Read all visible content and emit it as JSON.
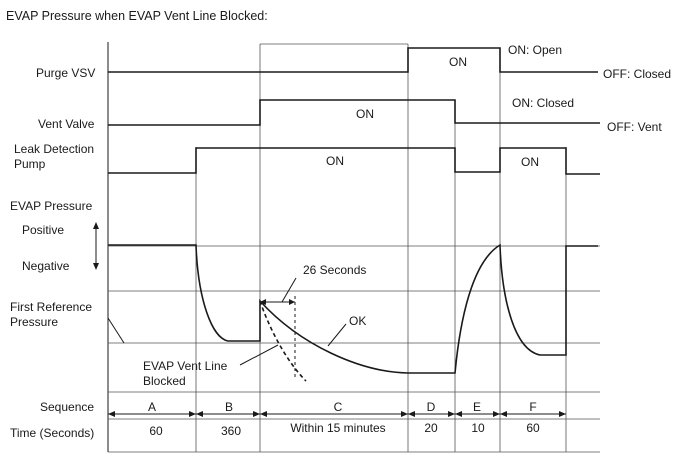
{
  "title": "EVAP Pressure when EVAP Vent Line Blocked:",
  "labels": {
    "purge_vsv": "Purge VSV",
    "vent_valve": "Vent Valve",
    "leak_pump_line1": "Leak Detection",
    "leak_pump_line2": "Pump",
    "evap_pressure": "EVAP Pressure",
    "positive": "Positive",
    "negative": "Negative",
    "first_ref_line1": "First Reference",
    "first_ref_line2": "Pressure",
    "sequence": "Sequence",
    "time": "Time (Seconds)"
  },
  "states": {
    "purge_on": "ON",
    "purge_on_desc": "ON: Open",
    "purge_off_desc": "OFF: Closed",
    "vent_on": "ON",
    "vent_on_desc": "ON: Closed",
    "vent_off_desc": "OFF: Vent",
    "pump_on_c": "ON",
    "pump_on_f": "ON"
  },
  "annotations": {
    "seconds_26": "26 Seconds",
    "ok": "OK",
    "blocked_line1": "EVAP Vent Line",
    "blocked_line2": "Blocked"
  },
  "sequence": [
    {
      "label": "A",
      "time": "60"
    },
    {
      "label": "B",
      "time": "360"
    },
    {
      "label": "C",
      "time": "Within 15 minutes"
    },
    {
      "label": "D",
      "time": "20"
    },
    {
      "label": "E",
      "time": "10"
    },
    {
      "label": "F",
      "time": "60"
    }
  ]
}
